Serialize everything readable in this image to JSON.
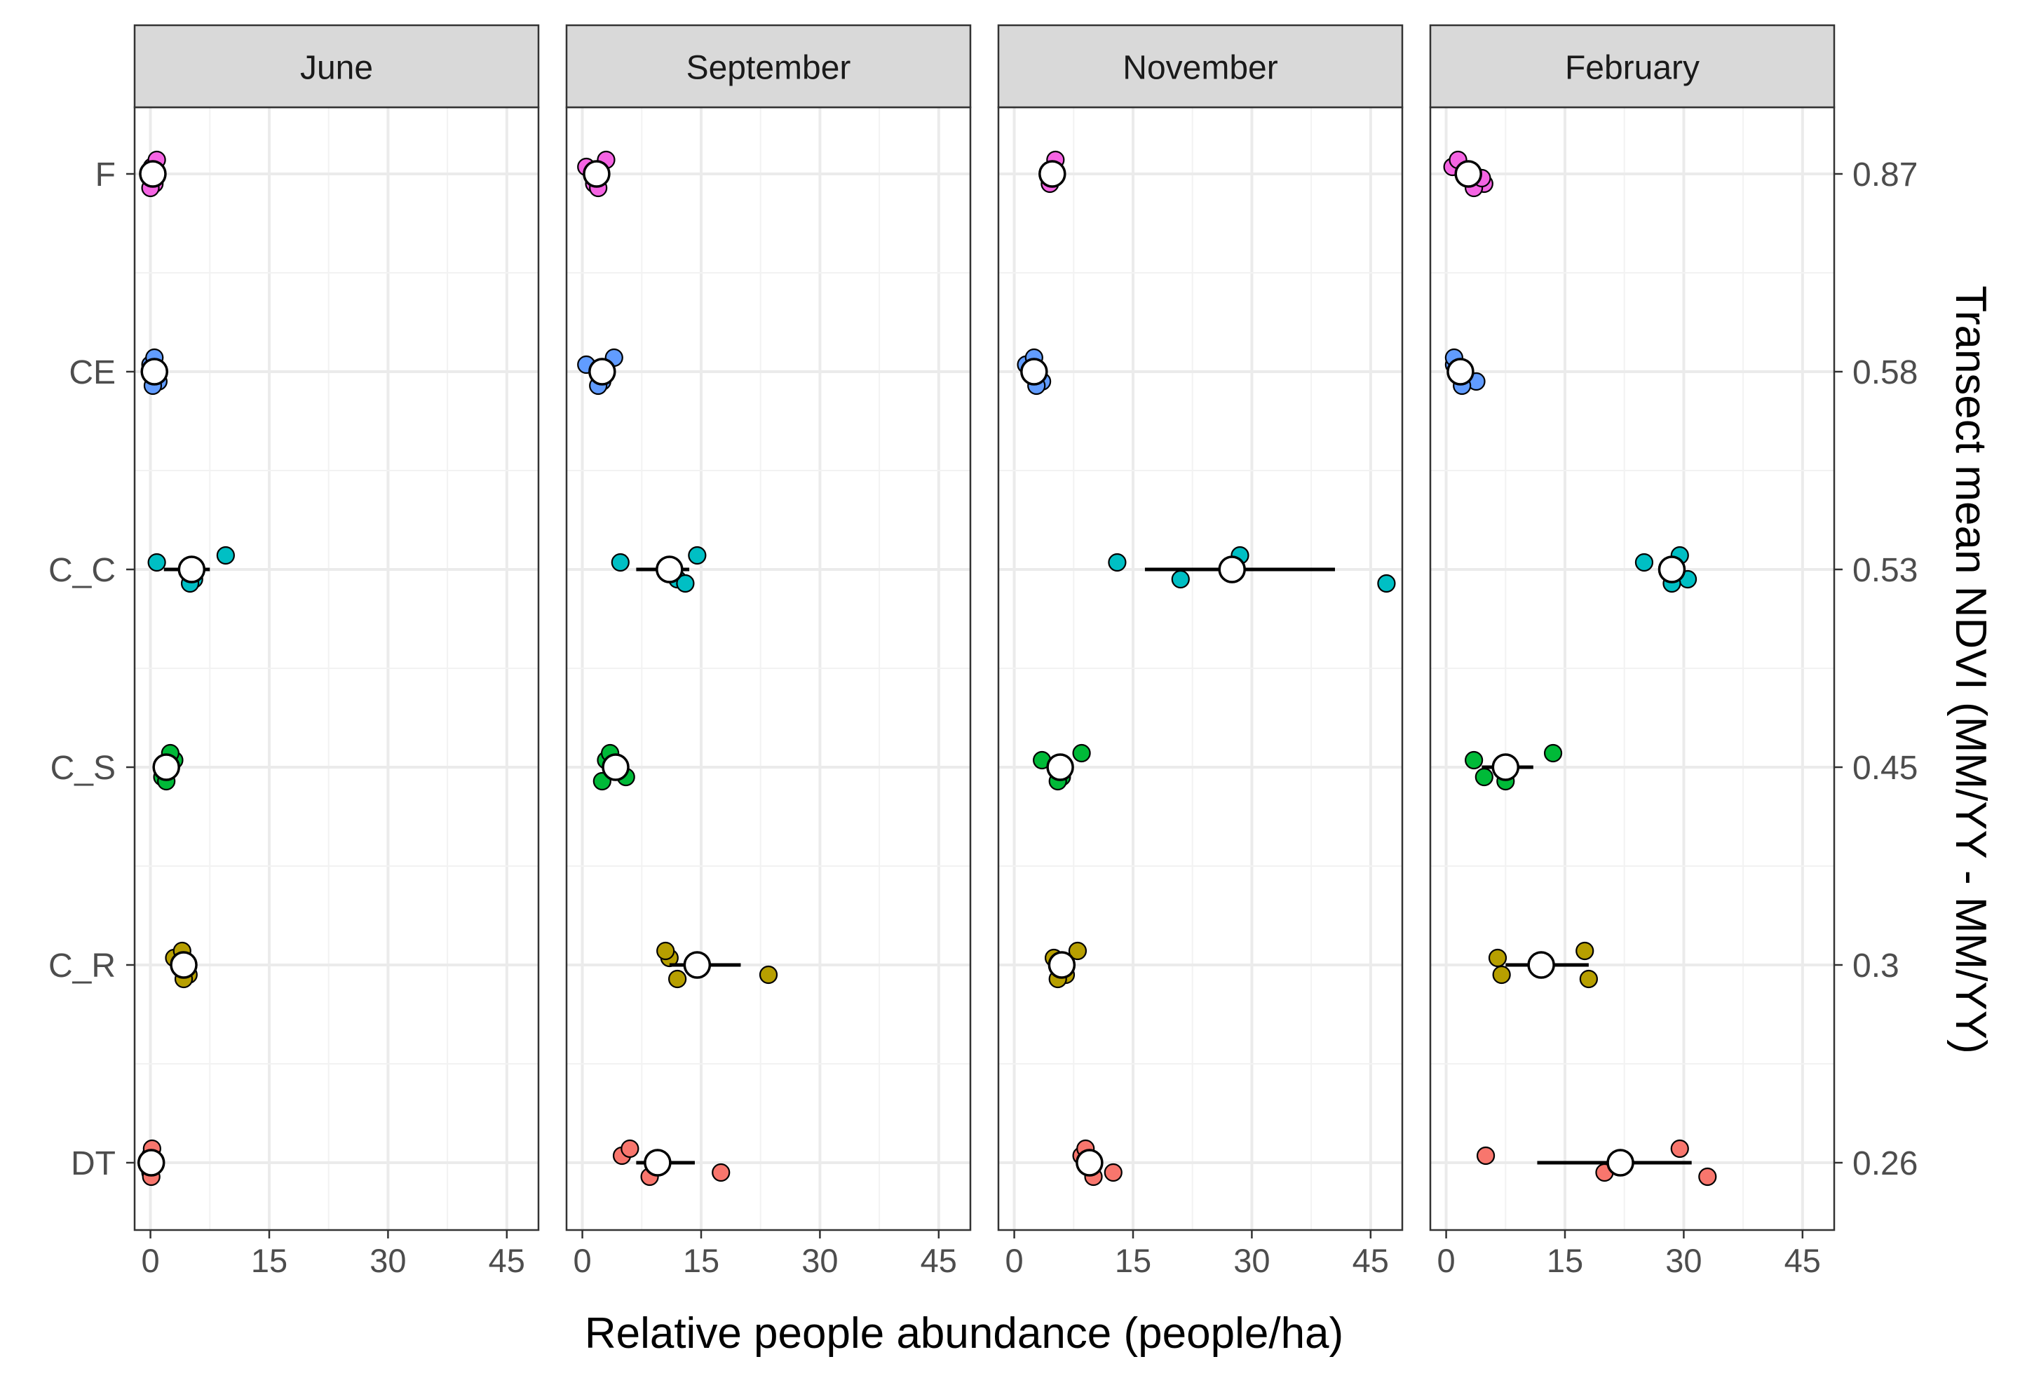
{
  "chart_data": {
    "type": "scatter",
    "facets": [
      "June",
      "September",
      "November",
      "February"
    ],
    "categories": [
      "F",
      "CE",
      "C_C",
      "C_S",
      "C_R",
      "DT"
    ],
    "secondary_axis_labels": [
      "0.87",
      "0.58",
      "0.53",
      "0.45",
      "0.3",
      "0.26"
    ],
    "xlabel": "Relative people abundance (people/ha)",
    "ylabel_right": "Transect mean NDVI (MM/YY - MM/YY)",
    "xlim": [
      -2,
      49
    ],
    "x_ticks": [
      0,
      15,
      30,
      45
    ],
    "grid": true,
    "category_colors": {
      "F": "#F564E3",
      "CE": "#619CFF",
      "C_C": "#00BFC4",
      "C_S": "#00BA38",
      "C_R": "#B79F00",
      "DT": "#F8766D"
    },
    "mean_marker_color": "#ffffff",
    "panels": [
      {
        "facet": "June",
        "groups": [
          {
            "category": "F",
            "points": [
              0.2,
              0.5,
              0.8,
              0.0,
              0.3
            ],
            "mean": 0.3,
            "ci": [
              0.0,
              0.6
            ]
          },
          {
            "category": "CE",
            "points": [
              0.0,
              1.0,
              0.5,
              0.3
            ],
            "mean": 0.5,
            "ci": [
              0.0,
              1.0
            ]
          },
          {
            "category": "C_C",
            "points": [
              0.8,
              5.5,
              9.5,
              5.0
            ],
            "mean": 5.2,
            "ci": [
              1.7,
              7.5
            ]
          },
          {
            "category": "C_S",
            "points": [
              3.0,
              1.5,
              2.5,
              2.0
            ],
            "mean": 2.0,
            "ci": [
              1.5,
              3.0
            ]
          },
          {
            "category": "C_R",
            "points": [
              3.0,
              4.8,
              4.0,
              4.2
            ],
            "mean": 4.2,
            "ci": [
              3.2,
              5.2
            ]
          },
          {
            "category": "DT",
            "points": [
              0.0,
              0.0,
              0.2,
              0.1
            ],
            "mean": 0.1,
            "ci": [
              0.0,
              0.3
            ]
          }
        ]
      },
      {
        "facet": "September",
        "groups": [
          {
            "category": "F",
            "points": [
              0.5,
              1.5,
              3.0,
              2.0
            ],
            "mean": 1.8,
            "ci": [
              0.8,
              2.8
            ]
          },
          {
            "category": "CE",
            "points": [
              0.5,
              2.5,
              4.0,
              2.0
            ],
            "mean": 2.5,
            "ci": [
              1.2,
              3.8
            ]
          },
          {
            "category": "C_C",
            "points": [
              4.8,
              12.0,
              14.5,
              13.0
            ],
            "mean": 11.0,
            "ci": [
              6.8,
              13.5
            ]
          },
          {
            "category": "C_S",
            "points": [
              3.0,
              5.5,
              3.5,
              2.5,
              4.0
            ],
            "mean": 4.2,
            "ci": [
              3.2,
              5.2
            ]
          },
          {
            "category": "C_R",
            "points": [
              11.0,
              23.5,
              10.5,
              12.0
            ],
            "mean": 14.5,
            "ci": [
              11.0,
              20.0
            ]
          },
          {
            "category": "DT",
            "points": [
              5.0,
              17.5,
              6.0,
              8.5
            ],
            "mean": 9.5,
            "ci": [
              6.8,
              14.2
            ]
          }
        ]
      },
      {
        "facet": "November",
        "groups": [
          {
            "category": "F",
            "points": [
              5.0,
              4.5,
              5.2
            ],
            "mean": 4.8,
            "ci": [
              4.2,
              5.5
            ]
          },
          {
            "category": "CE",
            "points": [
              1.5,
              3.5,
              2.5,
              2.8
            ],
            "mean": 2.5,
            "ci": [
              1.8,
              3.5
            ]
          },
          {
            "category": "C_C",
            "points": [
              13.0,
              21.0,
              28.5,
              47.0
            ],
            "mean": 27.5,
            "ci": [
              16.5,
              40.5
            ]
          },
          {
            "category": "C_S",
            "points": [
              3.5,
              6.0,
              8.5,
              5.5
            ],
            "mean": 5.8,
            "ci": [
              4.5,
              7.2
            ]
          },
          {
            "category": "C_R",
            "points": [
              5.0,
              6.5,
              8.0,
              5.5
            ],
            "mean": 6.0,
            "ci": [
              5.0,
              7.2
            ]
          },
          {
            "category": "DT",
            "points": [
              8.5,
              12.5,
              9.0,
              10.0
            ],
            "mean": 9.5,
            "ci": [
              8.5,
              10.5
            ]
          }
        ]
      },
      {
        "facet": "February",
        "groups": [
          {
            "category": "F",
            "points": [
              0.8,
              4.8,
              1.5,
              3.5,
              4.5
            ],
            "mean": 2.8,
            "ci": [
              1.5,
              4.2
            ]
          },
          {
            "category": "CE",
            "points": [
              1.0,
              3.8,
              1.0,
              2.0
            ],
            "mean": 1.8,
            "ci": [
              1.0,
              2.5
            ]
          },
          {
            "category": "C_C",
            "points": [
              25.0,
              30.5,
              29.5,
              28.5
            ],
            "mean": 28.5,
            "ci": [
              27.5,
              29.5
            ]
          },
          {
            "category": "C_S",
            "points": [
              3.5,
              4.8,
              13.5,
              7.5
            ],
            "mean": 7.5,
            "ci": [
              4.5,
              11.0
            ]
          },
          {
            "category": "C_R",
            "points": [
              6.5,
              7.0,
              17.5,
              18.0
            ],
            "mean": 12.0,
            "ci": [
              7.5,
              18.0
            ]
          },
          {
            "category": "DT",
            "points": [
              5.0,
              20.0,
              29.5,
              33.0
            ],
            "mean": 22.0,
            "ci": [
              11.5,
              31.0
            ]
          }
        ]
      }
    ]
  }
}
